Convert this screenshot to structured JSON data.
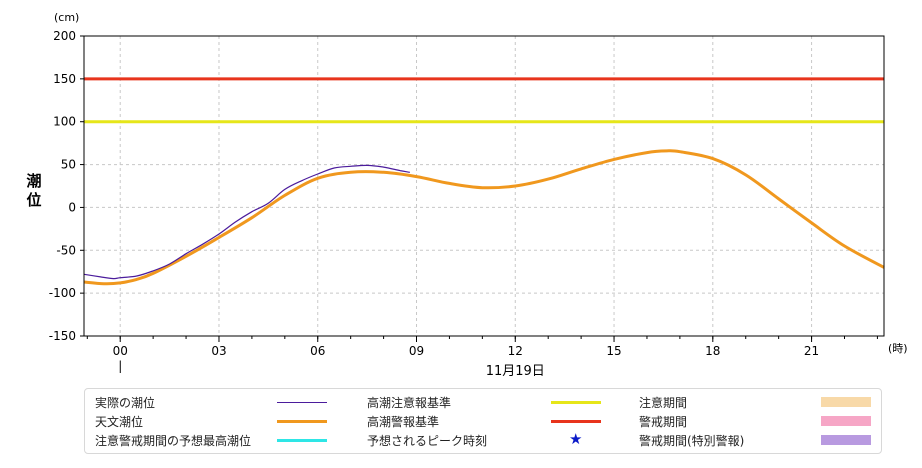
{
  "chart_data": {
    "type": "line",
    "y_unit": "(cm)",
    "x_unit": "(時)",
    "ylabel": "潮位",
    "date_label": "11月19日",
    "ylim": [
      -150,
      200
    ],
    "y_ticks": [
      200,
      150,
      100,
      50,
      0,
      -50,
      -100,
      -150
    ],
    "x_range_hours": [
      -1.1,
      23.2
    ],
    "x_ticks": [
      {
        "hour": 0,
        "label": "00"
      },
      {
        "hour": 3,
        "label": "03"
      },
      {
        "hour": 6,
        "label": "06"
      },
      {
        "hour": 9,
        "label": "09"
      },
      {
        "hour": 12,
        "label": "12"
      },
      {
        "hour": 15,
        "label": "15"
      },
      {
        "hour": 18,
        "label": "18"
      },
      {
        "hour": 21,
        "label": "21"
      }
    ],
    "grid": true,
    "reference_lines": [
      {
        "name": "高潮警報基準",
        "value": 150,
        "color": "#e8341c"
      },
      {
        "name": "高潮注意報基準",
        "value": 100,
        "color": "#e6e619"
      }
    ],
    "series": [
      {
        "name": "天文潮位",
        "color": "#f0981e",
        "x": [
          -1.1,
          -0.5,
          0,
          0.5,
          1,
          2,
          3,
          4,
          5,
          6,
          7,
          8,
          9,
          10,
          11,
          12,
          13,
          14,
          15,
          16,
          16.6,
          17,
          18,
          19,
          20,
          21,
          22,
          23.2
        ],
        "values": [
          -87,
          -89,
          -88,
          -84,
          -77,
          -57,
          -35,
          -12,
          14,
          34,
          41,
          41,
          36,
          28,
          23,
          25,
          33,
          45,
          56,
          64,
          66,
          65,
          57,
          38,
          10,
          -18,
          -45,
          -70
        ]
      },
      {
        "name": "実際の潮位",
        "color": "#4b1c9c",
        "x": [
          -1.1,
          -0.6,
          -0.2,
          0,
          0.5,
          1,
          1.5,
          2,
          2.5,
          3,
          3.5,
          4,
          4.5,
          5,
          5.5,
          6,
          6.5,
          7,
          7.5,
          8,
          8.5,
          8.8
        ],
        "values": [
          -78,
          -81,
          -83,
          -82,
          -80,
          -74,
          -66,
          -54,
          -43,
          -31,
          -17,
          -5,
          5,
          21,
          31,
          39,
          46,
          48,
          49,
          47,
          43,
          41
        ]
      }
    ],
    "annotations": [
      {
        "type": "marker",
        "hour": 0,
        "label": "|"
      }
    ]
  },
  "legend": [
    {
      "label": "実際の潮位",
      "kind": "line",
      "color": "#4b1c9c",
      "width": 1
    },
    {
      "label": "高潮注意報基準",
      "kind": "line",
      "color": "#e6e619",
      "width": 3
    },
    {
      "label": "注意期間",
      "kind": "box",
      "color": "#f8d9a8"
    },
    {
      "label": "天文潮位",
      "kind": "line",
      "color": "#f0981e",
      "width": 3
    },
    {
      "label": "高潮警報基準",
      "kind": "line",
      "color": "#e8341c",
      "width": 3
    },
    {
      "label": "警戒期間",
      "kind": "box",
      "color": "#f6a6c6"
    },
    {
      "label": "注意警戒期間の予想最高潮位",
      "kind": "line",
      "color": "#2ee6e6",
      "width": 3
    },
    {
      "label": "予想されるピーク時刻",
      "kind": "star",
      "color": "#0b1ac8"
    },
    {
      "label": "警戒期間(特別警報)",
      "kind": "box",
      "color": "#b89ae0"
    }
  ]
}
